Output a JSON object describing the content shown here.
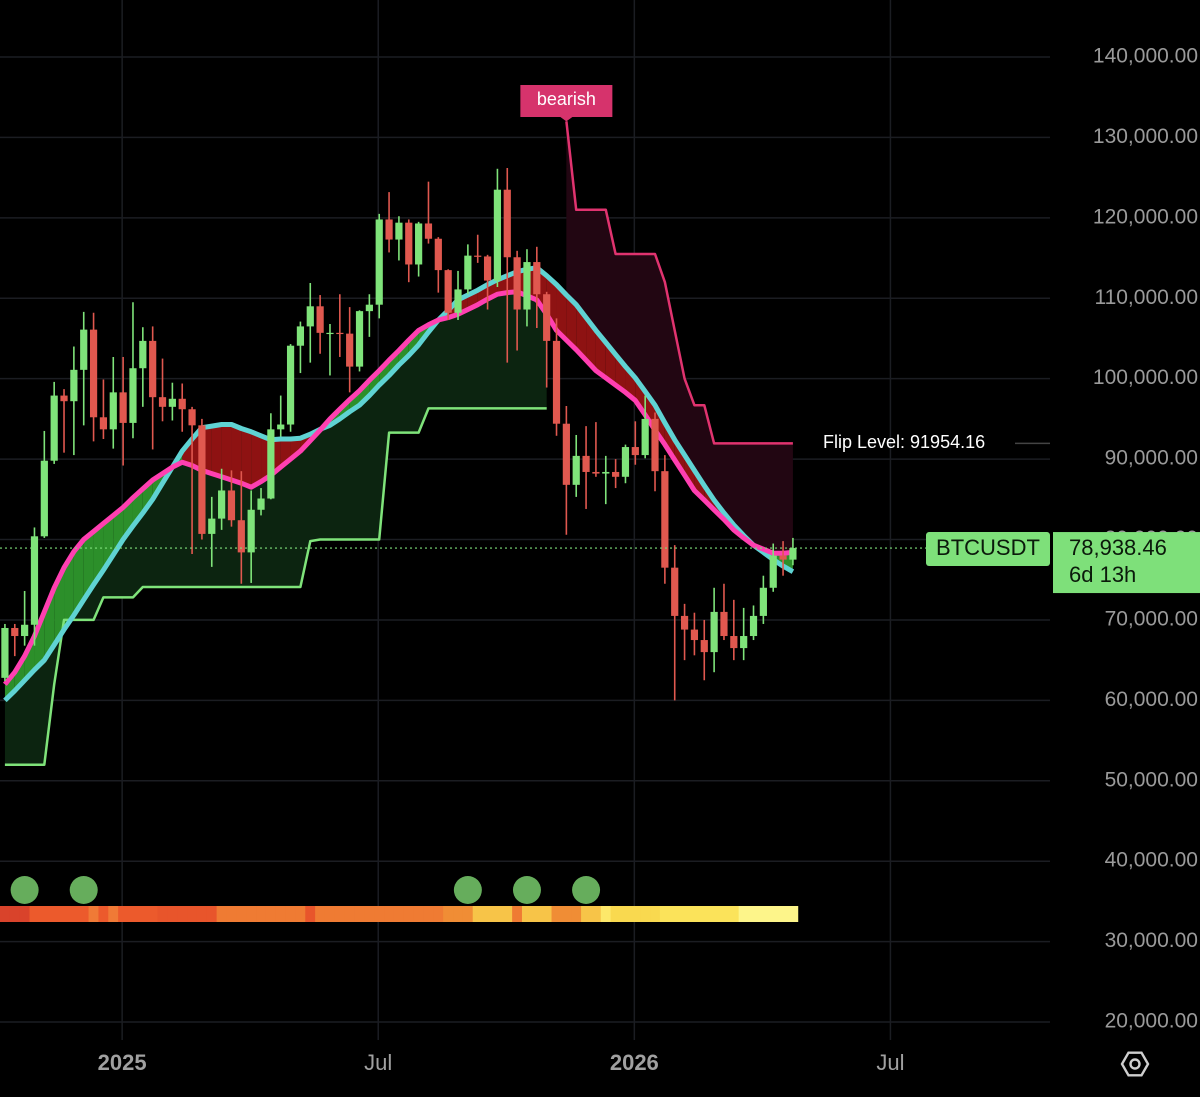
{
  "chart_data": {
    "type": "candlestick",
    "xlim": [
      -0.5,
      106.1
    ],
    "ylim": [
      17767,
      147088
    ],
    "grid": true,
    "xticks": [
      {
        "value": 11.9,
        "label": "2025"
      },
      {
        "value": 37.9,
        "label": "Jul"
      },
      {
        "value": 63.9,
        "label": "2026"
      },
      {
        "value": 89.9,
        "label": "Jul"
      }
    ],
    "yticks": [
      {
        "value": 20000,
        "label": "20,000.00"
      },
      {
        "value": 30000,
        "label": "30,000.00"
      },
      {
        "value": 40000,
        "label": "40,000.00"
      },
      {
        "value": 50000,
        "label": "50,000.00"
      },
      {
        "value": 60000,
        "label": "60,000.00"
      },
      {
        "value": 70000,
        "label": "70,000.00"
      },
      {
        "value": 80000,
        "label": "80,000.00"
      },
      {
        "value": 90000,
        "label": "90,000.00"
      },
      {
        "value": 100000,
        "label": "100,000.00"
      },
      {
        "value": 110000,
        "label": "110,000.00"
      },
      {
        "value": 120000,
        "label": "120,000.00"
      },
      {
        "value": 130000,
        "label": "130,000.00"
      },
      {
        "value": 140000,
        "label": "140,000.00"
      }
    ],
    "up_color": "#7fe37a",
    "down_color": "#e0584f",
    "open": [
      62800,
      69000,
      68000,
      69400,
      80400,
      89800,
      97900,
      97200,
      101100,
      106100,
      95200,
      93700,
      98300,
      94500,
      101300,
      104700,
      97700,
      96500,
      97500,
      96200,
      94200,
      80700,
      82600,
      86100,
      82400,
      78400,
      83700,
      85100,
      93700,
      94300,
      104100,
      106500,
      109000,
      105700,
      105700,
      105600,
      101500,
      108400,
      109200,
      119800,
      117300,
      119400,
      114200,
      119300,
      117400,
      113500,
      108200,
      111100,
      115300,
      115200,
      112200,
      123500,
      115100,
      108600,
      114500,
      110500,
      104700,
      94400,
      86800,
      90400,
      88400,
      88200,
      88400,
      87800,
      91500,
      90500,
      95000,
      88500,
      76500,
      70500,
      68800,
      67500,
      66000,
      71000,
      68000,
      66500,
      68000,
      70500,
      74000,
      78000,
      77500
    ],
    "high": [
      69500,
      69500,
      73600,
      81500,
      93500,
      99600,
      98700,
      104000,
      108300,
      108200,
      99900,
      102700,
      102700,
      109500,
      106400,
      106500,
      102500,
      99500,
      99400,
      96500,
      95000,
      85300,
      88800,
      88600,
      88500,
      86100,
      86400,
      95700,
      97900,
      104300,
      107100,
      111900,
      110400,
      106800,
      110500,
      108900,
      108500,
      110500,
      120500,
      123200,
      120200,
      119800,
      119500,
      124500,
      117600,
      113600,
      113400,
      116700,
      117900,
      115400,
      126100,
      126200,
      115900,
      116100,
      116400,
      110800,
      107500,
      96600,
      93000,
      94100,
      94600,
      90400,
      90000,
      91800,
      94700,
      97900,
      95800,
      90500,
      79300,
      72000,
      70900,
      70000,
      74000,
      74500,
      72500,
      71500,
      71800,
      75500,
      79500,
      79800,
      80200
    ],
    "low": [
      62400,
      65500,
      66800,
      66800,
      80200,
      89400,
      90800,
      90500,
      94200,
      92200,
      92500,
      91300,
      89200,
      92600,
      96500,
      91200,
      94700,
      94800,
      93400,
      78200,
      80000,
      76600,
      81200,
      81600,
      74500,
      74600,
      83000,
      85000,
      92800,
      93400,
      100700,
      102000,
      103100,
      100400,
      102700,
      98300,
      100900,
      105200,
      107500,
      115700,
      114700,
      112000,
      112700,
      116800,
      110700,
      107300,
      107300,
      110500,
      114400,
      108600,
      111400,
      102000,
      103500,
      106500,
      106300,
      98900,
      92900,
      80600,
      85300,
      83800,
      87800,
      84400,
      86400,
      87000,
      89300,
      90100,
      86000,
      74500,
      60000,
      65000,
      65600,
      62500,
      63500,
      67500,
      65000,
      65000,
      67500,
      69500,
      73500,
      75500,
      76800
    ],
    "close": [
      69000,
      68000,
      69400,
      80400,
      89800,
      97900,
      97200,
      101100,
      106100,
      95200,
      93700,
      98300,
      94500,
      101300,
      104700,
      97700,
      96500,
      97500,
      96200,
      94200,
      80700,
      82600,
      86100,
      82400,
      78400,
      83700,
      85100,
      93700,
      94300,
      104100,
      106500,
      109000,
      105700,
      105700,
      105600,
      101500,
      108400,
      109200,
      119800,
      117300,
      119400,
      114200,
      119300,
      117400,
      113500,
      108200,
      111100,
      115300,
      115200,
      112200,
      123500,
      115100,
      108600,
      114500,
      110500,
      104700,
      94400,
      86800,
      90400,
      88400,
      88200,
      88400,
      87800,
      91500,
      90500,
      95000,
      88500,
      76500,
      70500,
      68800,
      67500,
      66000,
      71000,
      68000,
      66500,
      68000,
      70500,
      74000,
      78000,
      77500,
      78938.46
    ],
    "series": [
      {
        "color": "#ff3fb1",
        "values": [
          62000,
          63500,
          65500,
          68000,
          71000,
          74000,
          76500,
          78500,
          80000,
          81000,
          82000,
          83000,
          84000,
          85200,
          86300,
          87400,
          88200,
          89000,
          89600,
          89200,
          88600,
          88200,
          87800,
          87400,
          87000,
          86500,
          87200,
          88000,
          89000,
          90000,
          91000,
          92300,
          93600,
          95000,
          96200,
          97400,
          98500,
          99800,
          101000,
          102300,
          103500,
          104800,
          106000,
          106700,
          107300,
          107600,
          108000,
          108600,
          109200,
          109900,
          110500,
          110700,
          110800,
          110300,
          109800,
          108000,
          106000,
          104800,
          103600,
          102300,
          101000,
          100100,
          99200,
          98300,
          97300,
          95500,
          93600,
          91800,
          89900,
          88000,
          86100,
          84900,
          83700,
          82500,
          81200,
          80200,
          79300,
          78800,
          78300,
          78300,
          78400
        ]
      },
      {
        "color": "#5fd3d3",
        "values": [
          60000,
          61200,
          62500,
          63800,
          65000,
          66900,
          68800,
          70600,
          72500,
          74400,
          76200,
          78100,
          80000,
          81700,
          83300,
          85000,
          87000,
          89000,
          91000,
          92500,
          93900,
          94100,
          94300,
          94300,
          93800,
          93400,
          92900,
          92400,
          92500,
          92500,
          92600,
          93100,
          93700,
          94200,
          95000,
          95900,
          96700,
          97900,
          99200,
          100400,
          101700,
          102900,
          104200,
          105800,
          107300,
          108500,
          109800,
          110400,
          111000,
          111700,
          112300,
          112800,
          113300,
          113600,
          113800,
          112800,
          111700,
          110400,
          109200,
          107600,
          106000,
          104500,
          103000,
          101500,
          100100,
          98400,
          96700,
          94500,
          92400,
          90500,
          88600,
          86700,
          84900,
          83300,
          81800,
          80500,
          79300,
          78400,
          77500,
          76700,
          76000
        ]
      },
      {
        "color": "#7fe37a",
        "values": [
          52000,
          52000,
          52000,
          52000,
          52000,
          62000,
          70000,
          70000,
          70000,
          70000,
          72800,
          72800,
          72800,
          72800,
          74100,
          74100,
          74100,
          74100,
          74100,
          74100,
          74100,
          74100,
          74100,
          74100,
          74100,
          74100,
          74100,
          74100,
          74100,
          74100,
          74100,
          79800,
          80000,
          80000,
          80000,
          80000,
          80000,
          80000,
          80000,
          93300,
          93300,
          93300,
          93300,
          96300,
          96300,
          96300,
          96300,
          96300,
          96300,
          96300,
          96300,
          96300,
          96300,
          96300,
          96300,
          96300,
          null,
          null,
          null,
          null,
          null,
          null,
          null,
          null,
          null,
          null,
          null,
          null,
          null,
          null,
          null,
          null,
          null,
          null,
          null,
          null,
          null,
          null,
          null,
          null,
          null
        ]
      },
      {
        "color": "#e0336f",
        "values": [
          null,
          null,
          null,
          null,
          null,
          null,
          null,
          null,
          null,
          null,
          null,
          null,
          null,
          null,
          null,
          null,
          null,
          null,
          null,
          null,
          null,
          null,
          null,
          null,
          null,
          null,
          null,
          null,
          null,
          null,
          null,
          null,
          null,
          null,
          null,
          null,
          null,
          null,
          null,
          null,
          null,
          null,
          null,
          null,
          null,
          null,
          null,
          null,
          null,
          null,
          null,
          null,
          null,
          null,
          null,
          null,
          null,
          132000,
          121000,
          121000,
          121000,
          121000,
          115500,
          115500,
          115500,
          115500,
          115500,
          112000,
          106000,
          100000,
          96700,
          96700,
          91954.16,
          91954.16,
          91954.16,
          91954.16,
          91954.16,
          91954.16,
          91954.16,
          91954.16,
          91954.16
        ]
      }
    ],
    "cloud_colors": {
      "up": "#2c8f2a",
      "down": "#8e1212",
      "support": "#0c2410",
      "resistance": "#220612"
    },
    "signal_label": "bearish",
    "signal_color": "#d6336c",
    "dots": {
      "color": "#66ad5c",
      "x": [
        2,
        8,
        47,
        53,
        59
      ]
    },
    "heat_colors": [
      "#d9432b",
      "#d9432b",
      "#d9432b",
      "#ec5a2c",
      "#ec5a2c",
      "#ec5a2c",
      "#ec5a2c",
      "#ec5a2c",
      "#ec5a2c",
      "#f07a36",
      "#ec5a2c",
      "#f07a36",
      "#ec5a2c",
      "#ec5a2c",
      "#ec5a2c",
      "#ec5a2c",
      "#e8552b",
      "#e8552b",
      "#e8552b",
      "#e8552b",
      "#e8552b",
      "#e8552b",
      "#ef7b33",
      "#ef7b33",
      "#ef7b33",
      "#ef7b33",
      "#ef7b33",
      "#ef7b33",
      "#ef7b33",
      "#ef7b33",
      "#ef7b33",
      "#e8552b",
      "#ef7b33",
      "#ef7b33",
      "#ef7b33",
      "#ef7b33",
      "#ef7b33",
      "#ef7b33",
      "#ef7b33",
      "#ef7b33",
      "#ef7b33",
      "#ef7b33",
      "#ef7b33",
      "#ef7b33",
      "#ef7b33",
      "#f08d35",
      "#f08d35",
      "#f08d35",
      "#f7c448",
      "#f7c448",
      "#f7c448",
      "#f7c448",
      "#ef7b33",
      "#f7c448",
      "#f7c448",
      "#f7c448",
      "#f08d35",
      "#f08d35",
      "#f08d35",
      "#f7c448",
      "#f7c448",
      "#fde86a",
      "#f9d94f",
      "#f9d94f",
      "#f9d94f",
      "#f9d94f",
      "#f9d94f",
      "#fbe35a",
      "#fbe35a",
      "#fbe35a",
      "#fbe35a",
      "#fbe35a",
      "#fbe35a",
      "#fbe35a",
      "#fbe35a",
      "#fdf58a",
      "#fdf58a",
      "#fdf58a",
      "#fdf58a",
      "#fdf58a",
      "#fdf58a"
    ],
    "flip_level": 91954.16,
    "flip_label": "Flip Level: 91954.16",
    "symbol": "BTCUSDT",
    "price": 78938.46,
    "price_label": "78,938.46",
    "countdown": "6d 13h",
    "price_color": "#7ee07a"
  }
}
